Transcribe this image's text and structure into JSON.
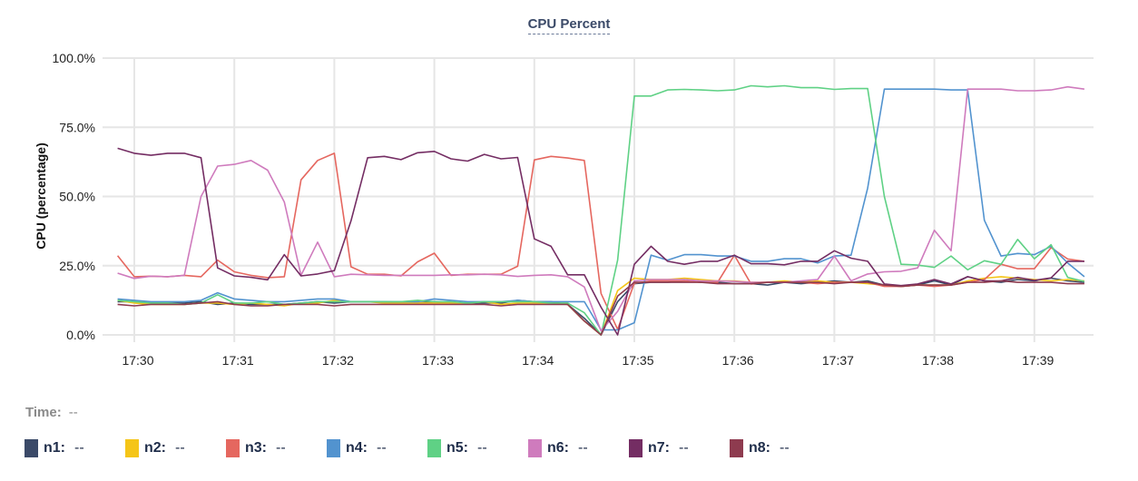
{
  "chart_data": {
    "type": "line",
    "title": "CPU Percent",
    "ylabel": "CPU (percentage)",
    "xlabel": "",
    "ylim": [
      0,
      100
    ],
    "yticks": [
      "0.0%",
      "25.0%",
      "50.0%",
      "75.0%",
      "100.0%"
    ],
    "ytick_values": [
      0,
      25,
      50,
      75,
      100
    ],
    "xticks": [
      "17:30",
      "17:31",
      "17:32",
      "17:33",
      "17:34",
      "17:35",
      "17:36",
      "17:37",
      "17:38",
      "17:39"
    ],
    "grid": true,
    "legend_placement": "bottom",
    "x": [
      "17:29:50",
      "17:30:00",
      "17:30:10",
      "17:30:20",
      "17:30:30",
      "17:30:40",
      "17:30:50",
      "17:31:00",
      "17:31:10",
      "17:31:20",
      "17:31:30",
      "17:31:40",
      "17:31:50",
      "17:32:00",
      "17:32:10",
      "17:32:20",
      "17:32:30",
      "17:32:40",
      "17:32:50",
      "17:33:00",
      "17:33:10",
      "17:33:20",
      "17:33:30",
      "17:33:40",
      "17:33:50",
      "17:34:00",
      "17:34:10",
      "17:34:20",
      "17:34:30",
      "17:34:40",
      "17:34:50",
      "17:35:00",
      "17:35:10",
      "17:35:20",
      "17:35:30",
      "17:35:40",
      "17:35:50",
      "17:36:00",
      "17:36:10",
      "17:36:20",
      "17:36:30",
      "17:36:40",
      "17:36:50",
      "17:37:00",
      "17:37:10",
      "17:37:20",
      "17:37:30",
      "17:37:40",
      "17:37:50",
      "17:38:00",
      "17:38:10",
      "17:38:20",
      "17:38:30",
      "17:38:40",
      "17:38:50",
      "17:39:00",
      "17:39:10",
      "17:39:20",
      "17:39:30"
    ],
    "series": [
      {
        "name": "n1",
        "color": "#3b4a68",
        "values": [
          12,
          12,
          11.5,
          11.5,
          11.5,
          12,
          11,
          11.5,
          11,
          11,
          11,
          11.5,
          12,
          11.5,
          12,
          12,
          12,
          11.8,
          11.5,
          12,
          11.5,
          11.5,
          11.5,
          11.5,
          12.5,
          12,
          12,
          11,
          6,
          0,
          12,
          18.5,
          19,
          19,
          19.5,
          19,
          19,
          18.5,
          18.5,
          18,
          19,
          18.5,
          19,
          19.5,
          19,
          19.5,
          18,
          17.5,
          18,
          19.5,
          18,
          21,
          19.5,
          19,
          20,
          19.5,
          20.5,
          19.5,
          19
        ]
      },
      {
        "name": "n2",
        "color": "#f5c518",
        "values": [
          12.5,
          11.5,
          11,
          11,
          11,
          11.5,
          11.5,
          11,
          11.5,
          11,
          10.5,
          11.5,
          11.5,
          12.5,
          12,
          12,
          11.5,
          11.5,
          11.5,
          11.5,
          11.5,
          11.5,
          12,
          11,
          11.5,
          11.5,
          11.5,
          11,
          5,
          0,
          16,
          20.5,
          20,
          20,
          20.5,
          20,
          19.5,
          19.5,
          19,
          19,
          19.5,
          19,
          19.5,
          19,
          19,
          18.5,
          18,
          17.5,
          18,
          18,
          18,
          19.5,
          20.5,
          21,
          20.5,
          20,
          19.5,
          20,
          19.5
        ]
      },
      {
        "name": "n3",
        "color": "#e5675f",
        "values": [
          28.6,
          21,
          21.2,
          21,
          21.5,
          21,
          27,
          22.8,
          21.5,
          20.7,
          21,
          56,
          63,
          65.6,
          24.6,
          21.9,
          21.9,
          21.3,
          26.4,
          29.5,
          21.5,
          21.9,
          21.9,
          21.9,
          24.8,
          63.2,
          64.5,
          63.9,
          63,
          15,
          2,
          18.7,
          19.5,
          19.5,
          19.5,
          19,
          19,
          28.8,
          18.4,
          19,
          19,
          19,
          18.5,
          19,
          19,
          19,
          17.5,
          17.5,
          18,
          17.5,
          18,
          19,
          20,
          25.5,
          23.9,
          23.9,
          31.5,
          27.4,
          26.6
        ]
      },
      {
        "name": "n4",
        "color": "#5293cf",
        "values": [
          13,
          12.5,
          12,
          12,
          12,
          12.5,
          15.2,
          13,
          12.5,
          12,
          12,
          12.5,
          13,
          13,
          12,
          12,
          12,
          12,
          12,
          13,
          12.5,
          12,
          12,
          12,
          12.5,
          12,
          12,
          12,
          12,
          1.8,
          1.8,
          4.4,
          28.8,
          27,
          29,
          29,
          28.5,
          28.5,
          26.6,
          26.6,
          27.5,
          27.5,
          26,
          28.5,
          28.8,
          53,
          88.8,
          88.8,
          88.8,
          88.8,
          88.5,
          88.5,
          41.4,
          28.5,
          29.4,
          29,
          32,
          26,
          21
        ]
      },
      {
        "name": "n5",
        "color": "#5fd185",
        "values": [
          12.5,
          12,
          11.5,
          11.5,
          11,
          11.5,
          14.5,
          11.5,
          11.5,
          12,
          11,
          11.5,
          12,
          12,
          12,
          12,
          12,
          12,
          12.5,
          12,
          12,
          11.5,
          12,
          12,
          12,
          12,
          11.5,
          11.5,
          8,
          0,
          27,
          86.3,
          86.3,
          88.5,
          88.7,
          88.5,
          88.2,
          88.5,
          90,
          89.6,
          90,
          89.3,
          89.3,
          88.7,
          89,
          89,
          50,
          25.5,
          25.2,
          24.4,
          28.5,
          23.5,
          26.8,
          25.5,
          34.5,
          27.5,
          32.6,
          20.8,
          19.3
        ]
      },
      {
        "name": "n6",
        "color": "#cf7bbd",
        "values": [
          22.3,
          20.4,
          21.2,
          21,
          21.5,
          50,
          61,
          61.6,
          63,
          59.5,
          48,
          21.5,
          33.5,
          21,
          21.9,
          21.7,
          21.5,
          21.5,
          21.5,
          21.5,
          21.7,
          21.7,
          21.9,
          21.7,
          21.1,
          21.5,
          21.7,
          21,
          17.3,
          1.4,
          8.5,
          19.5,
          20,
          20,
          20,
          19.5,
          19.5,
          19.3,
          19,
          19,
          19,
          19.5,
          20,
          28.5,
          19.5,
          22,
          22.8,
          23,
          24.2,
          37.8,
          30.4,
          88.8,
          88.8,
          88.8,
          88.2,
          88.2,
          88.5,
          89.6,
          88.8
        ]
      },
      {
        "name": "n7",
        "color": "#742d63",
        "values": [
          67.4,
          65.6,
          64.9,
          65.6,
          65.6,
          64,
          24.2,
          21.3,
          20.8,
          19.9,
          29,
          21.3,
          22,
          23.2,
          41.2,
          64,
          64.5,
          63.3,
          65.8,
          66.3,
          63.6,
          62.8,
          65.2,
          63.6,
          64.1,
          34.7,
          32,
          21.7,
          21.7,
          10,
          0,
          25.5,
          32,
          26.6,
          25.5,
          26.6,
          26.6,
          28.8,
          25.7,
          25.7,
          25.3,
          26.6,
          26.6,
          30.4,
          27.7,
          26.6,
          18.4,
          17.8,
          18.4,
          20,
          18.4,
          21,
          19.5,
          19.5,
          20.8,
          19.7,
          20.6,
          26.6,
          26.6
        ]
      },
      {
        "name": "n8",
        "color": "#8e3b4f",
        "values": [
          11,
          10.5,
          11,
          11,
          11,
          11.5,
          12,
          11,
          10.5,
          10.5,
          11,
          11,
          11,
          10.5,
          11,
          11,
          11,
          11,
          11,
          11,
          11,
          11,
          11,
          10.5,
          11,
          11,
          11,
          11,
          5,
          0,
          14,
          19,
          19,
          19,
          19,
          19,
          18.5,
          18.5,
          18.5,
          19,
          19,
          19,
          19,
          18.5,
          19,
          19,
          18,
          17.5,
          18,
          18,
          18,
          19,
          19,
          19.5,
          19,
          19,
          19,
          18.5,
          18.5
        ]
      }
    ]
  },
  "time_label": "Time:",
  "time_value": "--",
  "legend": [
    {
      "label": "n1:",
      "value": "--"
    },
    {
      "label": "n2:",
      "value": "--"
    },
    {
      "label": "n3:",
      "value": "--"
    },
    {
      "label": "n4:",
      "value": "--"
    },
    {
      "label": "n5:",
      "value": "--"
    },
    {
      "label": "n6:",
      "value": "--"
    },
    {
      "label": "n7:",
      "value": "--"
    },
    {
      "label": "n8:",
      "value": "--"
    }
  ]
}
